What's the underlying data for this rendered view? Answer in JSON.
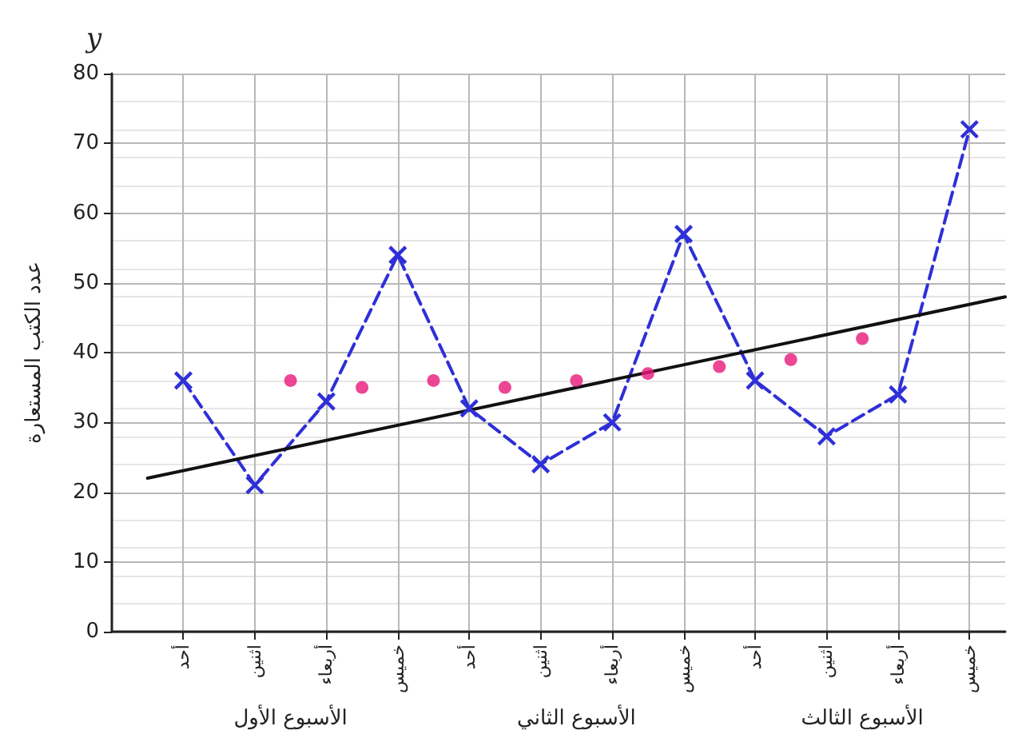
{
  "chart_data": {
    "type": "line",
    "ylabel": "عدد الكتب المستعارة",
    "annotations": [
      "y",
      "الأسبوع الأول",
      "الأسبوع الثاني",
      "الأسبوع الثالث"
    ],
    "categories": [
      null,
      null,
      "أحد",
      null,
      "اثنين",
      null,
      "أربعاء",
      null,
      "خميس",
      null,
      "أحد",
      null,
      "اثنين",
      null,
      "أربعاء",
      null,
      "خميس",
      null,
      "أحد",
      null,
      "اثنين",
      null,
      "أربعاء",
      null,
      "خميس",
      null
    ],
    "ylim": [
      0,
      80
    ],
    "yticks": [
      0,
      10,
      20,
      30,
      40,
      50,
      60,
      70,
      80
    ],
    "grid": true,
    "series": [
      {
        "color": "#2f2fd8",
        "marker": "cross",
        "line_style": "dashed",
        "values": [
          null,
          null,
          36,
          null,
          21,
          null,
          33,
          null,
          54,
          null,
          32,
          null,
          24,
          null,
          30,
          null,
          57,
          null,
          36,
          null,
          28,
          null,
          34,
          null,
          72,
          null
        ]
      },
      {
        "type": "scatter",
        "color": "#e8187a",
        "marker": "circle",
        "values": [
          null,
          null,
          null,
          null,
          null,
          36,
          null,
          35,
          null,
          36,
          null,
          35,
          null,
          36,
          null,
          37,
          null,
          38,
          null,
          39,
          null,
          42,
          null,
          null,
          null,
          null
        ]
      },
      {
        "type": "line",
        "color": "#111111",
        "marker": "none",
        "line_style": "solid",
        "values": [
          null,
          22,
          null,
          null,
          null,
          null,
          null,
          null,
          null,
          null,
          null,
          null,
          null,
          null,
          null,
          null,
          null,
          null,
          null,
          null,
          null,
          null,
          null,
          null,
          null,
          48
        ]
      }
    ]
  }
}
